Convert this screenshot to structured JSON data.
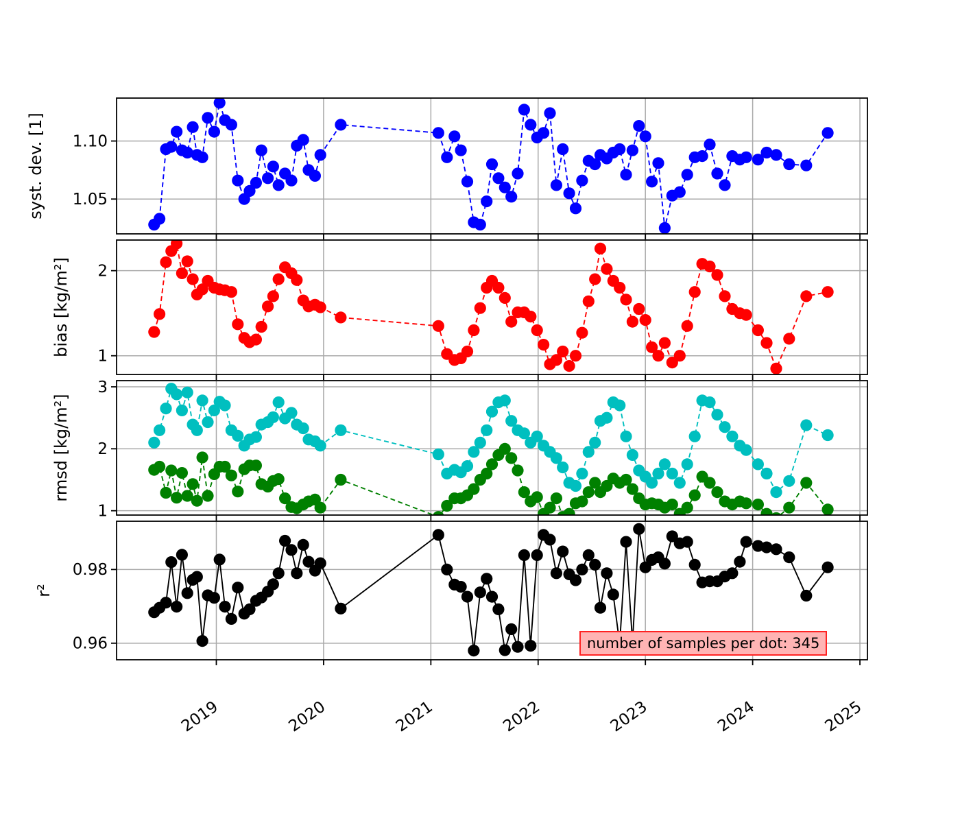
{
  "figure": {
    "background": "#ffffff"
  },
  "annotation": {
    "text": "number of samples per dot: 345",
    "bg_color": "#ffb4b4",
    "border_color": "#ff2222"
  },
  "chart_data": {
    "type": "line",
    "title": "",
    "xlabel": "",
    "grid": true,
    "legend": "none",
    "marker": "circle",
    "xlim": [
      2018.07,
      2025.07
    ],
    "xticks": [
      2019,
      2020,
      2021,
      2022,
      2023,
      2024,
      2025
    ],
    "xtick_labels": [
      "2019",
      "2020",
      "2021",
      "2022",
      "2023",
      "2024",
      "2025"
    ],
    "x": [
      2018.42,
      2018.47,
      2018.53,
      2018.58,
      2018.63,
      2018.68,
      2018.73,
      2018.78,
      2018.82,
      2018.87,
      2018.92,
      2018.98,
      2019.03,
      2019.08,
      2019.14,
      2019.2,
      2019.26,
      2019.31,
      2019.37,
      2019.42,
      2019.48,
      2019.53,
      2019.58,
      2019.64,
      2019.7,
      2019.75,
      2019.81,
      2019.86,
      2019.92,
      2019.97,
      2020.16,
      2021.07,
      2021.15,
      2021.22,
      2021.28,
      2021.34,
      2021.4,
      2021.46,
      2021.52,
      2021.57,
      2021.63,
      2021.69,
      2021.75,
      2021.81,
      2021.87,
      2021.93,
      2021.99,
      2022.05,
      2022.11,
      2022.17,
      2022.23,
      2022.29,
      2022.35,
      2022.41,
      2022.47,
      2022.53,
      2022.58,
      2022.64,
      2022.7,
      2022.76,
      2022.82,
      2022.88,
      2022.94,
      2023.0,
      2023.06,
      2023.12,
      2023.18,
      2023.25,
      2023.32,
      2023.39,
      2023.46,
      2023.53,
      2023.6,
      2023.67,
      2023.74,
      2023.81,
      2023.88,
      2023.94,
      2024.05,
      2024.13,
      2024.22,
      2024.34,
      2024.5,
      2024.7
    ],
    "panels": [
      {
        "id": "syst-dev",
        "ylabel": "syst. dev. [1]",
        "ylim": [
          1.02,
          1.137
        ],
        "ytick_values": [
          1.05,
          1.1
        ],
        "ytick_labels": [
          "1.05",
          "1.10"
        ],
        "series": [
          {
            "name": "syst-dev",
            "color": "#0000ff",
            "linestyle": "dashed",
            "values": [
              1.028,
              1.033,
              1.093,
              1.095,
              1.108,
              1.092,
              1.09,
              1.112,
              1.088,
              1.086,
              1.12,
              1.108,
              1.133,
              1.118,
              1.114,
              1.066,
              1.05,
              1.057,
              1.064,
              1.092,
              1.068,
              1.078,
              1.062,
              1.072,
              1.066,
              1.096,
              1.101,
              1.075,
              1.07,
              1.088,
              1.114,
              1.107,
              1.086,
              1.104,
              1.092,
              1.065,
              1.03,
              1.028,
              1.048,
              1.08,
              1.068,
              1.06,
              1.052,
              1.072,
              1.127,
              1.114,
              1.103,
              1.107,
              1.124,
              1.062,
              1.093,
              1.055,
              1.042,
              1.066,
              1.083,
              1.08,
              1.088,
              1.085,
              1.09,
              1.093,
              1.071,
              1.092,
              1.113,
              1.104,
              1.065,
              1.081,
              1.025,
              1.053,
              1.056,
              1.071,
              1.086,
              1.087,
              1.097,
              1.072,
              1.062,
              1.087,
              1.084,
              1.086,
              1.084,
              1.09,
              1.088,
              1.08,
              1.079,
              1.107
            ]
          }
        ]
      },
      {
        "id": "bias",
        "ylabel": "bias [kg/m²]",
        "ylim": [
          0.78,
          2.36
        ],
        "ytick_values": [
          1,
          2
        ],
        "ytick_labels": [
          "1",
          "2"
        ],
        "series": [
          {
            "name": "bias",
            "color": "#ff0000",
            "linestyle": "dashed",
            "values": [
              1.28,
              1.49,
              2.1,
              2.23,
              2.32,
              1.97,
              2.11,
              1.9,
              1.72,
              1.78,
              1.88,
              1.8,
              1.78,
              1.77,
              1.75,
              1.37,
              1.21,
              1.16,
              1.19,
              1.34,
              1.58,
              1.7,
              1.9,
              2.04,
              1.97,
              1.89,
              1.65,
              1.58,
              1.6,
              1.57,
              1.45,
              1.35,
              1.02,
              0.95,
              0.97,
              1.05,
              1.3,
              1.56,
              1.8,
              1.88,
              1.8,
              1.68,
              1.4,
              1.51,
              1.51,
              1.46,
              1.3,
              1.13,
              0.9,
              0.95,
              1.05,
              0.88,
              1.0,
              1.27,
              1.64,
              1.9,
              2.26,
              2.02,
              1.88,
              1.8,
              1.66,
              1.4,
              1.55,
              1.42,
              1.1,
              1.0,
              1.15,
              0.92,
              1.0,
              1.35,
              1.75,
              2.08,
              2.05,
              1.95,
              1.7,
              1.55,
              1.5,
              1.48,
              1.3,
              1.15,
              0.85,
              1.2,
              1.7,
              1.75
            ]
          }
        ]
      },
      {
        "id": "rmsd",
        "ylabel": "rmsd [kg/m²]",
        "ylim": [
          0.93,
          3.1
        ],
        "ytick_values": [
          1,
          2,
          3
        ],
        "ytick_labels": [
          "1",
          "2",
          "3"
        ],
        "series": [
          {
            "name": "rmsd-cyan",
            "color": "#00bfbf",
            "linestyle": "dashed",
            "values": [
              2.1,
              2.3,
              2.65,
              2.97,
              2.88,
              2.62,
              2.91,
              2.39,
              2.3,
              2.78,
              2.43,
              2.62,
              2.76,
              2.7,
              2.3,
              2.21,
              2.05,
              2.15,
              2.19,
              2.39,
              2.43,
              2.51,
              2.75,
              2.49,
              2.58,
              2.39,
              2.33,
              2.15,
              2.12,
              2.05,
              2.3,
              1.91,
              1.6,
              1.66,
              1.62,
              1.72,
              1.95,
              2.1,
              2.3,
              2.6,
              2.75,
              2.78,
              2.45,
              2.3,
              2.25,
              2.1,
              2.2,
              2.05,
              1.95,
              1.85,
              1.7,
              1.45,
              1.4,
              1.6,
              1.95,
              2.1,
              2.45,
              2.5,
              2.75,
              2.7,
              2.2,
              1.9,
              1.65,
              1.55,
              1.45,
              1.6,
              1.75,
              1.6,
              1.45,
              1.75,
              2.2,
              2.78,
              2.75,
              2.55,
              2.35,
              2.2,
              2.05,
              1.98,
              1.75,
              1.6,
              1.3,
              1.48,
              2.38,
              2.22
            ]
          },
          {
            "name": "rmsd-green",
            "color": "#008000",
            "linestyle": "dashed",
            "values": [
              1.66,
              1.71,
              1.29,
              1.65,
              1.21,
              1.61,
              1.24,
              1.43,
              1.16,
              1.86,
              1.24,
              1.59,
              1.71,
              1.71,
              1.57,
              1.31,
              1.67,
              1.73,
              1.73,
              1.43,
              1.39,
              1.48,
              1.51,
              1.2,
              1.06,
              1.04,
              1.1,
              1.15,
              1.18,
              1.05,
              1.5,
              0.9,
              1.08,
              1.2,
              1.2,
              1.25,
              1.35,
              1.5,
              1.6,
              1.75,
              1.9,
              2.0,
              1.85,
              1.65,
              1.3,
              1.15,
              1.22,
              0.95,
              1.05,
              1.2,
              0.9,
              0.95,
              1.12,
              1.15,
              1.3,
              1.45,
              1.3,
              1.4,
              1.52,
              1.45,
              1.5,
              1.35,
              1.2,
              1.1,
              1.12,
              1.1,
              1.05,
              1.1,
              0.95,
              1.05,
              1.25,
              1.55,
              1.45,
              1.3,
              1.15,
              1.1,
              1.15,
              1.12,
              1.1,
              0.95,
              0.88,
              1.05,
              1.45,
              1.02
            ]
          }
        ]
      },
      {
        "id": "r2",
        "ylabel": "r²",
        "ylim": [
          0.9555,
          0.9931
        ],
        "ytick_values": [
          0.96,
          0.98
        ],
        "ytick_labels": [
          "0.96",
          "0.98"
        ],
        "series": [
          {
            "name": "r2",
            "color": "#000000",
            "linestyle": "solid",
            "values": [
              0.9684,
              0.9696,
              0.971,
              0.982,
              0.9699,
              0.984,
              0.9736,
              0.9772,
              0.978,
              0.9606,
              0.973,
              0.9723,
              0.9827,
              0.9699,
              0.9666,
              0.9751,
              0.968,
              0.9692,
              0.9715,
              0.9724,
              0.974,
              0.976,
              0.979,
              0.9878,
              0.9853,
              0.979,
              0.9867,
              0.9821,
              0.9797,
              0.9817,
              0.9694,
              0.9894,
              0.98,
              0.9759,
              0.9753,
              0.9726,
              0.958,
              0.9738,
              0.9775,
              0.9726,
              0.9692,
              0.9581,
              0.9638,
              0.959,
              0.9839,
              0.9593,
              0.9839,
              0.9894,
              0.9881,
              0.979,
              0.9849,
              0.9787,
              0.9771,
              0.98,
              0.9839,
              0.9813,
              0.9696,
              0.979,
              0.9732,
              0.9598,
              0.9875,
              0.9602,
              0.991,
              0.9806,
              0.9826,
              0.9833,
              0.9816,
              0.989,
              0.9871,
              0.9875,
              0.9813,
              0.9765,
              0.9768,
              0.9768,
              0.9781,
              0.979,
              0.9821,
              0.9875,
              0.9864,
              0.986,
              0.9855,
              0.9833,
              0.9729,
              0.9806
            ]
          }
        ]
      }
    ],
    "style": {
      "grid_color": "#aaaaaa",
      "spine_color": "#000000",
      "marker_radius": 8.6
    }
  }
}
